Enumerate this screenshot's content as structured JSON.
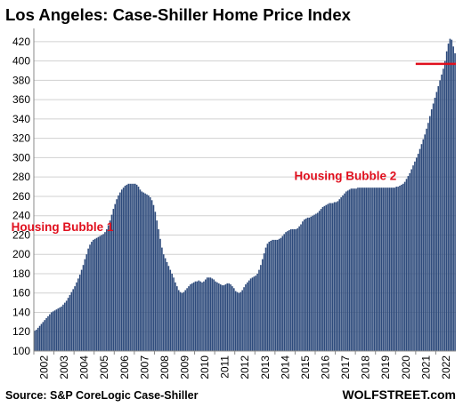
{
  "title": "Los Angeles: Case-Shiller Home Price Index",
  "source": "Source: S&P CoreLogic Case-Shiller",
  "brand": "WOLFSTREET.com",
  "colors": {
    "bars": "#2E4B7C",
    "reference_line": "#E0101E",
    "annotation": "#E0101E",
    "grid": "#D0D0D0"
  },
  "chart_data": {
    "type": "bar",
    "title": "Los Angeles: Case-Shiller Home Price Index",
    "frequency": "monthly",
    "xlabel": "",
    "ylabel": "",
    "ylim": [
      100,
      430
    ],
    "y_ticks": [
      100,
      120,
      140,
      160,
      180,
      200,
      220,
      240,
      260,
      280,
      300,
      320,
      340,
      360,
      380,
      400,
      420
    ],
    "x_tick_labels": [
      "2002",
      "2003",
      "2004",
      "2005",
      "2006",
      "2007",
      "2008",
      "2009",
      "2010",
      "2011",
      "2012",
      "2013",
      "2014",
      "2015",
      "2016",
      "2017",
      "2018",
      "2019",
      "2020",
      "2021",
      "2022"
    ],
    "grid": true,
    "annual_values": {
      "2002": [
        121,
        122,
        124,
        126,
        128,
        130,
        132,
        134,
        136,
        138,
        140,
        141
      ],
      "2003": [
        142,
        143,
        144,
        145,
        146,
        148,
        150,
        152,
        155,
        158,
        161,
        164
      ],
      "2004": [
        167,
        171,
        175,
        179,
        184,
        189,
        195,
        200,
        206,
        210,
        213,
        215
      ],
      "2005": [
        216,
        217,
        218,
        219,
        220,
        221,
        223,
        226,
        230,
        235,
        241,
        247
      ],
      "2006": [
        252,
        257,
        261,
        264,
        267,
        269,
        271,
        272,
        273,
        273,
        273,
        273
      ],
      "2007": [
        273,
        272,
        270,
        267,
        265,
        264,
        263,
        262,
        261,
        259,
        256,
        251
      ],
      "2008": [
        244,
        235,
        226,
        216,
        207,
        200,
        196,
        192,
        188,
        184,
        180,
        176
      ],
      "2009": [
        171,
        167,
        163,
        161,
        160,
        161,
        163,
        165,
        167,
        169,
        170,
        171
      ],
      "2010": [
        172,
        172,
        173,
        172,
        171,
        172,
        174,
        176,
        176,
        176,
        175,
        174
      ],
      "2011": [
        172,
        171,
        170,
        169,
        168,
        168,
        169,
        170,
        170,
        169,
        167,
        165
      ],
      "2012": [
        162,
        161,
        160,
        161,
        163,
        166,
        169,
        171,
        173,
        175,
        176,
        177
      ],
      "2013": [
        178,
        180,
        184,
        189,
        195,
        201,
        207,
        211,
        213,
        214,
        215,
        215
      ],
      "2014": [
        215,
        215,
        216,
        217,
        219,
        221,
        223,
        224,
        225,
        226,
        226,
        226
      ],
      "2015": [
        226,
        227,
        229,
        231,
        234,
        236,
        237,
        238,
        238,
        239,
        240,
        241
      ],
      "2016": [
        242,
        243,
        245,
        247,
        249,
        250,
        251,
        252,
        253,
        253,
        253,
        254
      ],
      "2017": [
        254,
        255,
        257,
        259,
        261,
        263,
        265,
        266,
        267,
        268,
        268,
        268
      ],
      "2018": [
        268,
        269,
        269,
        269,
        269,
        269,
        269,
        269,
        269,
        269,
        269,
        269
      ],
      "2019": [
        269,
        269,
        269,
        269,
        269,
        269,
        269,
        269,
        269,
        269,
        269,
        269
      ],
      "2020": [
        270,
        270,
        271,
        272,
        273,
        275,
        278,
        281,
        284,
        288,
        292,
        296
      ],
      "2021": [
        300,
        304,
        309,
        314,
        319,
        324,
        330,
        336,
        343,
        350,
        356,
        362
      ],
      "2022": [
        368,
        374,
        380,
        386,
        392,
        400,
        410,
        418,
        423,
        422,
        415,
        408
      ]
    },
    "reference_line": {
      "y": 397,
      "from": "2021-01",
      "to": "2022-12"
    },
    "annotations": [
      {
        "text": "Housing Bubble 1",
        "x": "2003-06",
        "y": 224
      },
      {
        "text": "Housing Bubble 2",
        "x": "2017-07",
        "y": 277
      }
    ]
  }
}
